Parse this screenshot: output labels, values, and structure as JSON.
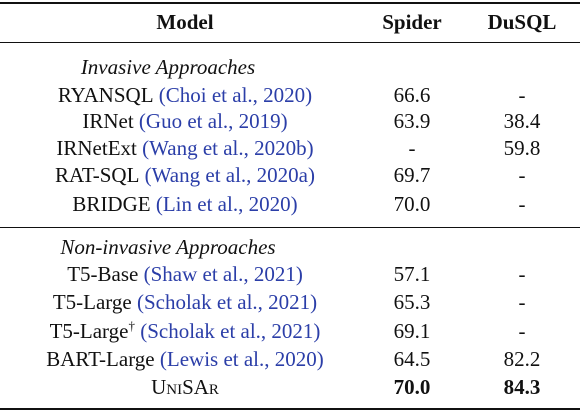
{
  "table": {
    "header": [
      "Model",
      "Spider",
      "DuSQL"
    ],
    "sections": [
      {
        "title": "Invasive Approaches",
        "rows": [
          {
            "model": "RYANSQL",
            "citation": "(Choi et al., 2020)",
            "spider": "66.6",
            "dusql": "-"
          },
          {
            "model": "IRNet",
            "citation": "(Guo et al., 2019)",
            "spider": "63.9",
            "dusql": "38.4"
          },
          {
            "model": "IRNetExt",
            "citation": "(Wang et al., 2020b)",
            "spider": "-",
            "dusql": "59.8"
          },
          {
            "model": "RAT-SQL",
            "citation": "(Wang et al., 2020a)",
            "spider": "69.7",
            "dusql": "-"
          },
          {
            "model": "BRIDGE",
            "citation": "(Lin et al., 2020)",
            "spider": "70.0",
            "dusql": "-"
          }
        ]
      },
      {
        "title": "Non-invasive Approaches",
        "rows": [
          {
            "model": "T5-Base",
            "citation": "(Shaw et al., 2021)",
            "spider": "57.1",
            "dusql": "-"
          },
          {
            "model": "T5-Large",
            "citation": "(Scholak et al., 2021)",
            "spider": "65.3",
            "dusql": "-"
          },
          {
            "model": "T5-Large",
            "mark": "†",
            "citation": "(Scholak et al., 2021)",
            "spider": "69.1",
            "dusql": "-"
          },
          {
            "model": "BART-Large",
            "citation": "(Lewis et al., 2020)",
            "spider": "64.5",
            "dusql": "82.2"
          },
          {
            "model": "UniSAr",
            "spider": "70.0",
            "dusql": "84.3",
            "highlight": true
          }
        ]
      }
    ]
  }
}
